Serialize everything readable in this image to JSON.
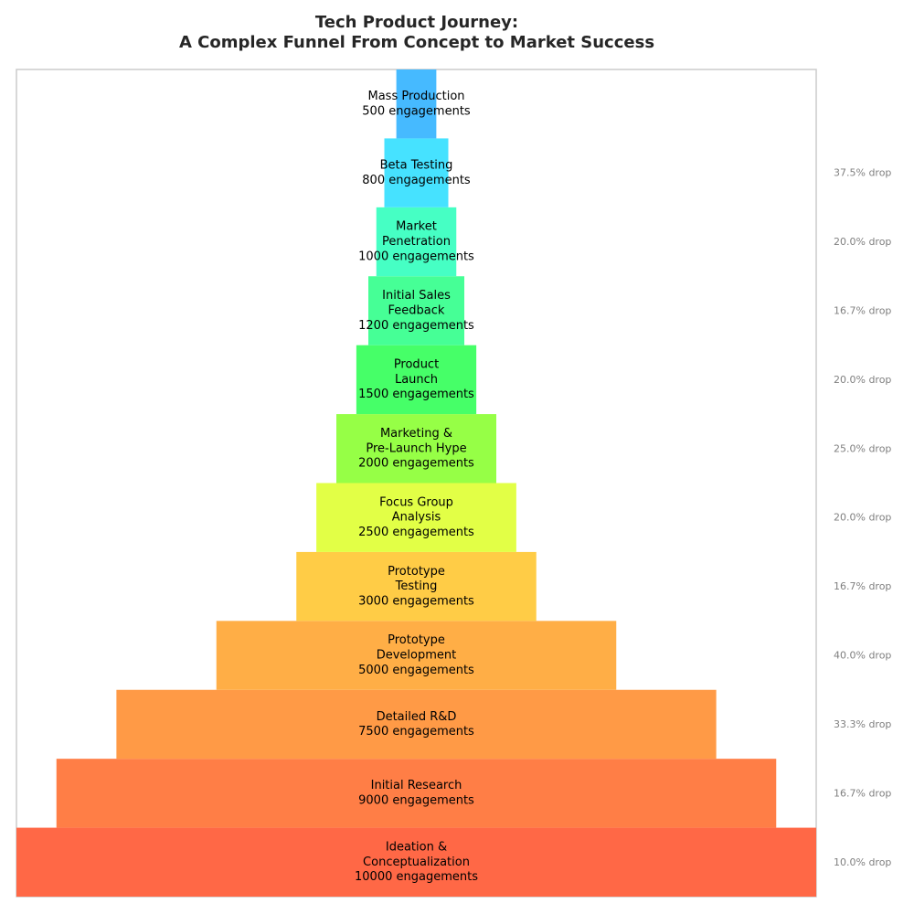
{
  "chart_data": {
    "type": "funnel",
    "title_line1": "Tech Product Journey:",
    "title_line2": "A Complex Funnel From Concept to Market Success",
    "value_suffix": "engagements",
    "stages": [
      {
        "label": [
          "Ideation &",
          "Conceptualization"
        ],
        "value": 10000,
        "color": "#ff6846"
      },
      {
        "label": [
          "Initial Research"
        ],
        "value": 9000,
        "color": "#ff7e46"
      },
      {
        "label": [
          "Detailed R&D"
        ],
        "value": 7500,
        "color": "#ff9a46"
      },
      {
        "label": [
          "Prototype",
          "Development"
        ],
        "value": 5000,
        "color": "#ffae46"
      },
      {
        "label": [
          "Prototype",
          "Testing"
        ],
        "value": 3000,
        "color": "#ffcc46"
      },
      {
        "label": [
          "Focus Group",
          "Analysis"
        ],
        "value": 2500,
        "color": "#e2ff46"
      },
      {
        "label": [
          "Marketing &",
          "Pre-Launch Hype"
        ],
        "value": 2000,
        "color": "#96ff46"
      },
      {
        "label": [
          "Product",
          "Launch"
        ],
        "value": 1500,
        "color": "#46ff68"
      },
      {
        "label": [
          "Initial Sales",
          "Feedback"
        ],
        "value": 1200,
        "color": "#46ff96"
      },
      {
        "label": [
          "Market",
          "Penetration"
        ],
        "value": 1000,
        "color": "#46ffc4"
      },
      {
        "label": [
          "Beta Testing"
        ],
        "value": 800,
        "color": "#46e2ff"
      },
      {
        "label": [
          "Mass Production"
        ],
        "value": 500,
        "color": "#46baff"
      }
    ],
    "drops": [
      "10.0% drop",
      "16.7% drop",
      "33.3% drop",
      "40.0% drop",
      "16.7% drop",
      "20.0% drop",
      "25.0% drop",
      "20.0% drop",
      "16.7% drop",
      "20.0% drop",
      "37.5% drop"
    ]
  }
}
